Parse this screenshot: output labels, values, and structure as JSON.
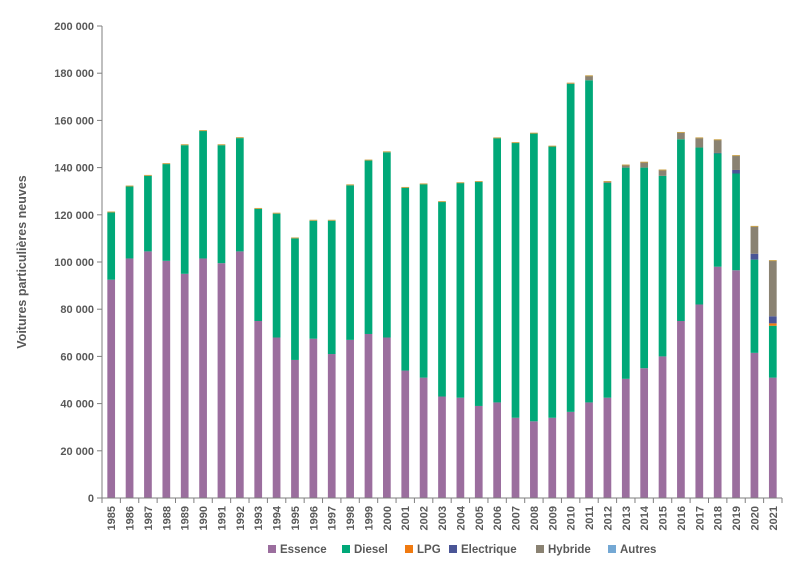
{
  "chart_data": {
    "type": "bar",
    "stacked": true,
    "title": "",
    "xlabel": "",
    "ylabel": "Voitures particulières neuves",
    "ylim": [
      0,
      200000
    ],
    "yticks": [
      0,
      20000,
      40000,
      60000,
      80000,
      100000,
      120000,
      140000,
      160000,
      180000,
      200000
    ],
    "ytick_labels": [
      "0",
      "20 000",
      "40 000",
      "60 000",
      "80 000",
      "100 000",
      "120 000",
      "140 000",
      "160 000",
      "180 000",
      "200 000"
    ],
    "grid": false,
    "legend_position": "bottom",
    "categories": [
      "1985",
      "1986",
      "1987",
      "1988",
      "1989",
      "1990",
      "1991",
      "1992",
      "1993",
      "1994",
      "1995",
      "1996",
      "1997",
      "1998",
      "1999",
      "2000",
      "2001",
      "2002",
      "2003",
      "2004",
      "2005",
      "2006",
      "2007",
      "2008",
      "2009",
      "2010",
      "2011",
      "2012",
      "2013",
      "2014",
      "2015",
      "2016",
      "2017",
      "2018",
      "2019",
      "2020",
      "2021"
    ],
    "series": [
      {
        "name": "Essence",
        "color": "#9b6e9e",
        "values": [
          92500,
          101500,
          104500,
          100500,
          95000,
          101500,
          99500,
          104500,
          75000,
          68000,
          58500,
          67500,
          61000,
          67000,
          69500,
          68000,
          54000,
          51000,
          43000,
          42500,
          39000,
          40500,
          34000,
          32500,
          34000,
          36500,
          40500,
          42500,
          50500,
          55000,
          60000,
          75000,
          82000,
          98000,
          96500,
          61500,
          51000
        ]
      },
      {
        "name": "Diesel",
        "color": "#00a878",
        "values": [
          28500,
          30500,
          32000,
          41000,
          54500,
          54000,
          50000,
          48000,
          47500,
          52500,
          51500,
          50000,
          56500,
          65500,
          73500,
          78500,
          77500,
          82000,
          82500,
          91000,
          95000,
          112000,
          116500,
          122000,
          115000,
          139000,
          136500,
          91000,
          89500,
          85000,
          76500,
          77000,
          66500,
          48000,
          41000,
          39500,
          22000
        ]
      },
      {
        "name": "LPG",
        "color": "#f07a10",
        "values": [
          0,
          0,
          0,
          0,
          0,
          0,
          0,
          0,
          0,
          0,
          0,
          0,
          0,
          0,
          0,
          0,
          0,
          0,
          0,
          0,
          0,
          0,
          0,
          0,
          0,
          0,
          0,
          0,
          0,
          0,
          0,
          0,
          0,
          0,
          0,
          0,
          1000
        ]
      },
      {
        "name": "Electrique",
        "color": "#4a5596",
        "values": [
          0,
          0,
          0,
          0,
          0,
          0,
          0,
          0,
          0,
          0,
          0,
          0,
          0,
          0,
          0,
          0,
          0,
          0,
          0,
          0,
          0,
          0,
          0,
          0,
          0,
          0,
          0,
          0,
          0,
          0,
          0,
          0,
          0,
          200,
          1500,
          2500,
          3000
        ]
      },
      {
        "name": "Hybride",
        "color": "#8a8272",
        "values": [
          0,
          0,
          0,
          0,
          0,
          0,
          0,
          0,
          0,
          0,
          0,
          0,
          0,
          0,
          0,
          0,
          0,
          0,
          0,
          0,
          0,
          0,
          0,
          0,
          0,
          200,
          1800,
          500,
          1000,
          2200,
          2400,
          2800,
          4000,
          5500,
          6000,
          11500,
          23500
        ]
      },
      {
        "name": "Autres",
        "color": "#74a8d4",
        "values": [
          0,
          0,
          0,
          0,
          0,
          0,
          0,
          0,
          0,
          0,
          0,
          0,
          0,
          0,
          0,
          0,
          0,
          0,
          0,
          0,
          0,
          0,
          0,
          0,
          0,
          0,
          0,
          0,
          0,
          0,
          0,
          0,
          0,
          0,
          0,
          0,
          0
        ]
      }
    ],
    "top_color": "#c9a24a",
    "top_values": [
      400,
      400,
      400,
      400,
      400,
      400,
      400,
      400,
      400,
      400,
      400,
      400,
      400,
      400,
      400,
      400,
      300,
      300,
      300,
      300,
      300,
      300,
      300,
      300,
      300,
      300,
      300,
      300,
      300,
      300,
      300,
      300,
      300,
      300,
      300,
      300,
      300
    ]
  },
  "colors": {
    "axis": "#7f7f7f",
    "text": "#595959"
  }
}
